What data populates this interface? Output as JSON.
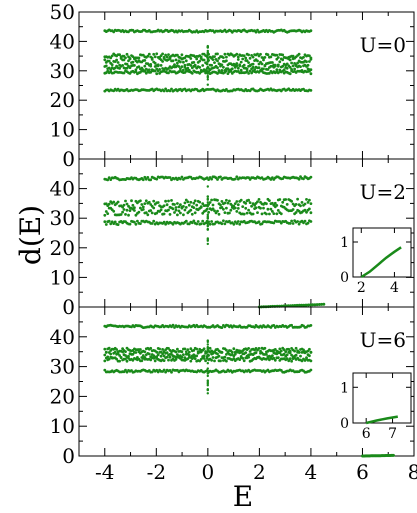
{
  "chart_data": {
    "type": "scatter",
    "xlabel": "E",
    "ylabel": "d(E)",
    "x_ticks": [
      "-4",
      "-2",
      "0",
      "2",
      "4",
      "6",
      "8"
    ],
    "xlim": [
      -5.0,
      8.0
    ],
    "color": "#1a8a1a",
    "panels": [
      {
        "label": "U=0",
        "ylim": [
          0,
          50
        ],
        "y_ticks": [
          "0",
          "10",
          "20",
          "30",
          "40",
          "50"
        ],
        "x_range": [
          -4,
          4
        ],
        "bands": [
          {
            "y": 43.5,
            "spread": 0.4
          },
          {
            "y": 35.0,
            "spread": 0.8
          },
          {
            "y": 33.0,
            "spread": 1.2
          },
          {
            "y": 31.0,
            "spread": 0.9
          },
          {
            "y": 29.5,
            "spread": 0.5
          },
          {
            "y": 23.5,
            "spread": 0.4
          }
        ],
        "spike": {
          "x": 0,
          "y_range": [
            25,
            39
          ]
        },
        "inset": null
      },
      {
        "label": "U=2",
        "ylim": [
          0,
          50
        ],
        "y_ticks": [
          "0",
          "10",
          "20",
          "30",
          "40"
        ],
        "x_range": [
          -4,
          4
        ],
        "bands": [
          {
            "y": 43.5,
            "spread": 0.5,
            "slope": 0.1
          },
          {
            "y": 35.0,
            "spread": 1.3,
            "slope": 0.3
          },
          {
            "y": 32.5,
            "spread": 1.3,
            "slope": 0.3
          },
          {
            "y": 28.5,
            "spread": 0.6,
            "slope": 0.1
          }
        ],
        "spike": {
          "x": 0,
          "y_range": [
            21,
            41
          ]
        },
        "tail": {
          "x_range": [
            2.0,
            4.5
          ],
          "y_range": [
            0.0,
            0.9
          ]
        },
        "inset": {
          "xlim": [
            1.5,
            5.0
          ],
          "ylim": [
            0,
            1.4
          ],
          "x_ticks": [
            "2",
            "4"
          ],
          "y_ticks": [
            "0",
            "1"
          ],
          "curve": [
            [
              2.0,
              0.0
            ],
            [
              2.5,
              0.15
            ],
            [
              3.0,
              0.35
            ],
            [
              3.5,
              0.55
            ],
            [
              4.0,
              0.72
            ],
            [
              4.4,
              0.85
            ]
          ]
        }
      },
      {
        "label": "U=6",
        "ylim": [
          0,
          50
        ],
        "y_ticks": [
          "0",
          "10",
          "20",
          "30",
          "40"
        ],
        "x_range": [
          -4,
          4
        ],
        "bands": [
          {
            "y": 43.5,
            "spread": 0.4
          },
          {
            "y": 35.5,
            "spread": 0.7
          },
          {
            "y": 34.0,
            "spread": 1.0
          },
          {
            "y": 32.5,
            "spread": 0.7
          },
          {
            "y": 28.5,
            "spread": 0.4
          }
        ],
        "spike": {
          "x": 0,
          "y_range": [
            21,
            39
          ]
        },
        "tail": {
          "x_range": [
            6.0,
            7.2
          ],
          "y_range": [
            0.0,
            0.2
          ]
        },
        "inset": {
          "xlim": [
            5.5,
            7.7
          ],
          "ylim": [
            0,
            1.4
          ],
          "x_ticks": [
            "6",
            "7"
          ],
          "y_ticks": [
            "0",
            "1"
          ],
          "curve": [
            [
              6.0,
              0.0
            ],
            [
              6.4,
              0.07
            ],
            [
              6.8,
              0.13
            ],
            [
              7.2,
              0.18
            ]
          ]
        }
      }
    ]
  }
}
